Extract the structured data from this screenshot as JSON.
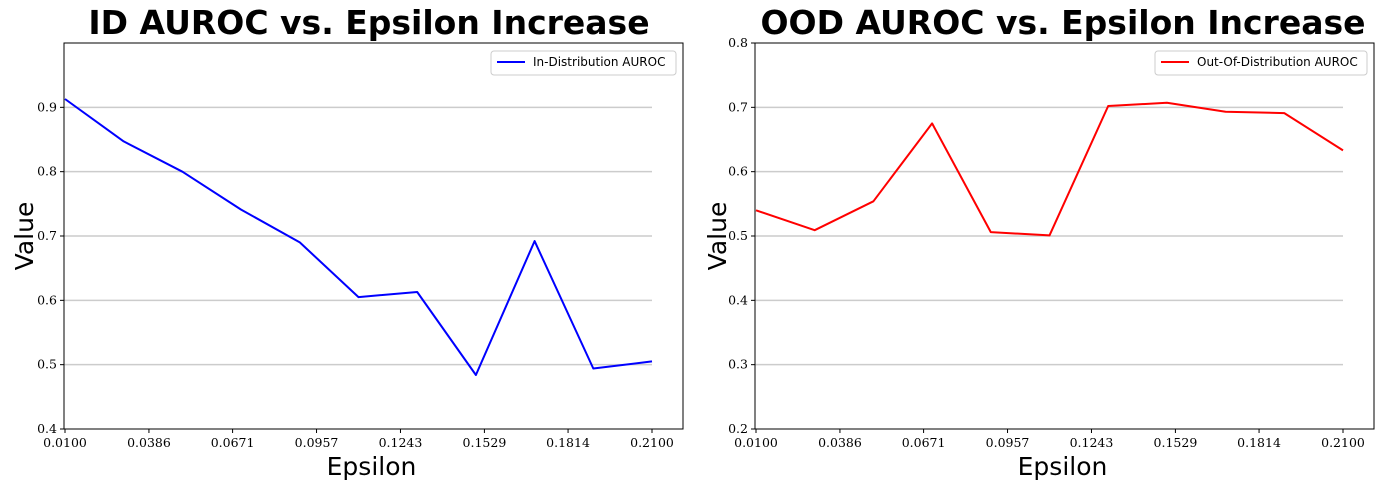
{
  "chart_data": [
    {
      "type": "line",
      "title": "ID AUROC vs. Epsilon Increase",
      "xlabel": "Epsilon",
      "ylabel": "Value",
      "xlim": [
        0.01,
        0.21
      ],
      "ylim": [
        0.4,
        1.0
      ],
      "x_ticks": [
        "0.0100",
        "0.0386",
        "0.0671",
        "0.0957",
        "0.1243",
        "0.1529",
        "0.1814",
        "0.2100"
      ],
      "y_ticks": [
        "0.4",
        "0.5",
        "0.6",
        "0.7",
        "0.8",
        "0.9"
      ],
      "grid": "horizontal",
      "legend_position": "top-right",
      "x": [
        0.01,
        0.03,
        0.05,
        0.07,
        0.09,
        0.11,
        0.13,
        0.15,
        0.17,
        0.19,
        0.21
      ],
      "series": [
        {
          "name": "In-Distribution AUROC",
          "color": "#0000ff",
          "values": [
            0.913,
            0.847,
            0.8,
            0.741,
            0.69,
            0.605,
            0.613,
            0.484,
            0.692,
            0.494,
            0.505
          ]
        }
      ]
    },
    {
      "type": "line",
      "title": "OOD AUROC vs. Epsilon Increase",
      "xlabel": "Epsilon",
      "ylabel": "Value",
      "xlim": [
        0.01,
        0.21
      ],
      "ylim": [
        0.2,
        0.8
      ],
      "x_ticks": [
        "0.0100",
        "0.0386",
        "0.0671",
        "0.0957",
        "0.1243",
        "0.1529",
        "0.1814",
        "0.2100"
      ],
      "y_ticks": [
        "0.2",
        "0.3",
        "0.4",
        "0.5",
        "0.6",
        "0.7",
        "0.8"
      ],
      "grid": "horizontal",
      "legend_position": "top-right",
      "x": [
        0.01,
        0.03,
        0.05,
        0.07,
        0.09,
        0.11,
        0.13,
        0.15,
        0.17,
        0.19,
        0.21
      ],
      "series": [
        {
          "name": "Out-Of-Distribution AUROC",
          "color": "#ff0000",
          "values": [
            0.54,
            0.509,
            0.554,
            0.675,
            0.506,
            0.501,
            0.702,
            0.707,
            0.693,
            0.691,
            0.633
          ]
        }
      ]
    }
  ]
}
